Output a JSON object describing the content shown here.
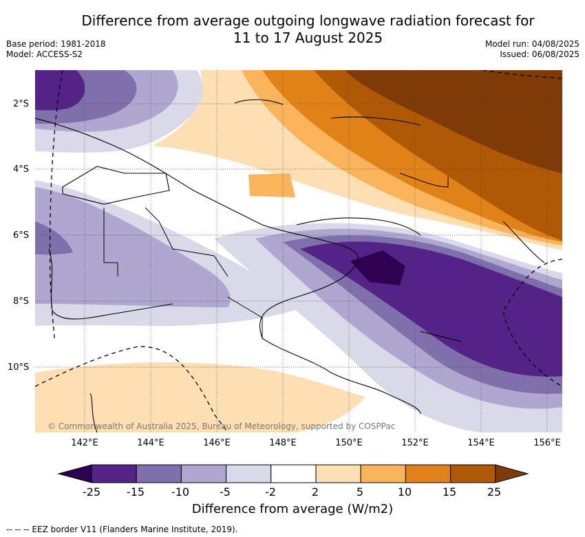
{
  "title_line1": "Difference from average outgoing longwave radiation forecast for",
  "title_line2": "11 to 17 August 2025",
  "meta_left": {
    "base_period": "Base period: 1981-2018",
    "model": "Model: ACCESS-S2"
  },
  "meta_right": {
    "model_run": "Model run: 04/08/2025",
    "issued": "Issued: 06/08/2025"
  },
  "map": {
    "latitude_labels": [
      "2°S",
      "4°S",
      "6°S",
      "8°S",
      "10°S"
    ],
    "longitude_labels": [
      "142°E",
      "144°E",
      "146°E",
      "148°E",
      "150°E",
      "152°E",
      "154°E",
      "156°E"
    ],
    "credit": "© Commonwealth of Australia 2025, Bureau of Meteorology, supported by COSPPac"
  },
  "colorbar": {
    "ticks": [
      "-25",
      "-15",
      "-10",
      "-5",
      "-2",
      "2",
      "5",
      "10",
      "15",
      "25"
    ],
    "colors": [
      "#2d0050",
      "#532387",
      "#7f6faa",
      "#afa7cf",
      "#d9d9ea",
      "#ffffff",
      "#fedfb3",
      "#f9b45c",
      "#e18219",
      "#af5805",
      "#7e3b08"
    ],
    "label": "Difference from average (W/m2)"
  },
  "eez_note": "--  --  -- EEZ border V11 (Flanders Marine Institute, 2019)."
}
